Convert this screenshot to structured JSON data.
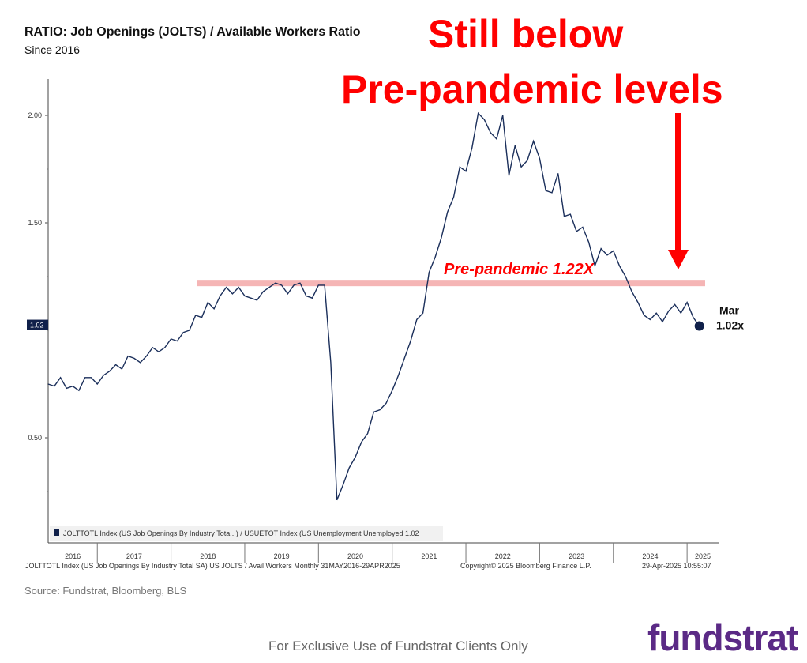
{
  "header": {
    "title": "RATIO: Job Openings (JOLTS) / Available Workers Ratio",
    "subtitle": "Since 2016"
  },
  "annotations": {
    "headline_line1": "Still below",
    "headline_line2": "Pre-pandemic levels",
    "prepandemic_label": "Pre-pandemic 1.22X",
    "prepandemic_value": 1.22,
    "last_label_1": "Mar",
    "last_label_2": "1.02x",
    "last_value_tag": "1.02",
    "arrow_color": "#ff0000",
    "band_color": "#f5b5b5"
  },
  "legend": {
    "text": "JOLTTOTL Index (US Job Openings By Industry Tota...) / USUETOT Index (US Unemployment Unemployed 1.02"
  },
  "bottom_bar": {
    "left": "JOLTTOTL Index (US Job Openings By Industry Total SA) US JOLTS / Avail Workers  Monthly 31MAY2016-29APR2025",
    "center": "Copyright© 2025 Bloomberg Finance L.P.",
    "right": "29-Apr-2025  10:55:07"
  },
  "source": "Source: Fundstrat, Bloomberg, BLS",
  "footer": "For Exclusive Use of Fundstrat Clients Only",
  "logo": "fundstrat",
  "chart_data": {
    "type": "line",
    "title": "RATIO: Job Openings (JOLTS) / Available Workers Ratio",
    "subtitle": "Since 2016",
    "ylim": [
      0.2,
      2.15
    ],
    "yticks": [
      0.5,
      1.5,
      2.0
    ],
    "ytick_labels": [
      "0.50",
      "1.50",
      "2.00"
    ],
    "x_year_labels": [
      "2016",
      "2017",
      "2018",
      "2019",
      "2020",
      "2021",
      "2022",
      "2023",
      "2024",
      "2025"
    ],
    "series_color": "#1b2f5b",
    "series": [
      {
        "name": "JOLTTOTL Index (US Job Openings By Industry Tota...) / USUETOT Index (US Unemployment Unemployed",
        "start": "2016-05",
        "frequency": "monthly",
        "values": [
          0.75,
          0.74,
          0.78,
          0.73,
          0.74,
          0.72,
          0.78,
          0.78,
          0.75,
          0.79,
          0.81,
          0.84,
          0.82,
          0.88,
          0.87,
          0.85,
          0.88,
          0.92,
          0.9,
          0.92,
          0.96,
          0.95,
          0.99,
          1.0,
          1.07,
          1.06,
          1.13,
          1.1,
          1.16,
          1.2,
          1.17,
          1.2,
          1.16,
          1.15,
          1.14,
          1.18,
          1.2,
          1.22,
          1.21,
          1.17,
          1.21,
          1.22,
          1.16,
          1.15,
          1.21,
          1.21,
          0.85,
          0.21,
          0.28,
          0.36,
          0.41,
          0.48,
          0.52,
          0.62,
          0.63,
          0.66,
          0.72,
          0.79,
          0.87,
          0.95,
          1.05,
          1.08,
          1.27,
          1.34,
          1.43,
          1.55,
          1.62,
          1.76,
          1.74,
          1.85,
          2.01,
          1.98,
          1.92,
          1.89,
          2.0,
          1.72,
          1.86,
          1.76,
          1.79,
          1.88,
          1.8,
          1.65,
          1.64,
          1.73,
          1.53,
          1.54,
          1.46,
          1.48,
          1.41,
          1.3,
          1.38,
          1.35,
          1.37,
          1.3,
          1.25,
          1.18,
          1.13,
          1.07,
          1.05,
          1.08,
          1.04,
          1.09,
          1.12,
          1.08,
          1.13,
          1.06,
          1.02
        ]
      }
    ]
  }
}
